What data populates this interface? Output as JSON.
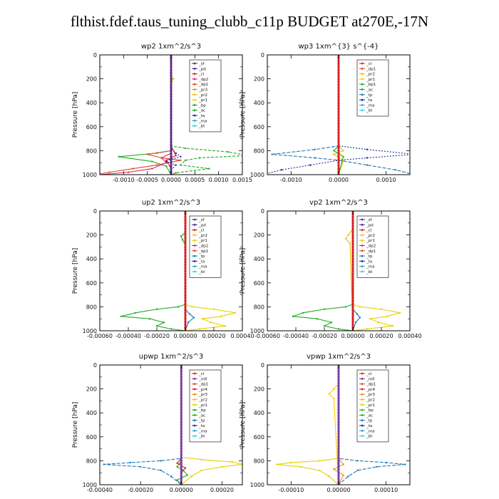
{
  "title": "flthist.fdef.taus_tuning_clubb_c11p  BUDGET at270E,-17N",
  "colors": {
    "sf": "#5b2a86",
    "pd": "#4a2a9a",
    "cl": "#d62020",
    "dp2": "#e0245e",
    "dp1": "#d84a2a",
    "pr3": "#e88a2a",
    "pr2": "#f0c000",
    "pr1": "#e8d000",
    "bp": "#22aa22",
    "ac": "#18b018",
    "tp": "#1e78b4",
    "ta": "#1e2a9a",
    "ma": "#3aa0c8",
    "bt": "#30d0e8",
    "mfl": "#7a3aa0",
    "pr4": "#c02040",
    "prX": "#ffd000"
  },
  "chart_data": [
    {
      "type": "line",
      "panel": "wp2",
      "title": "wp2  1xm^2/s^3",
      "ylabel": "Pressure [hPa]",
      "ylim": [
        1000,
        0
      ],
      "yticks": [
        0,
        200,
        400,
        600,
        800,
        1000
      ],
      "xlim": [
        -0.0015,
        0.0015
      ],
      "xticks": [
        -0.001,
        -0.0005,
        0.0,
        0.0005,
        0.001,
        0.0015
      ],
      "xticklabels": [
        "-0.0010",
        "-0.0005",
        "0.0000",
        "0.0005",
        "0.0010",
        "0.0015"
      ],
      "legend": [
        "_sf",
        "_pd",
        "_cl",
        "_dp2",
        "_dp1",
        "_pr3",
        "_pr2",
        "_pr1",
        "_bp",
        "_ac",
        "_ta",
        "_ma",
        "_bt"
      ],
      "series": [
        {
          "name": "_bp",
          "color": "bp",
          "dash": "4,2",
          "x": [
            0,
            0,
            0.0003,
            0.0012,
            0.0016,
            0.0006,
            0.0003,
            0.0002,
            0.0008,
            0.0001,
            0
          ],
          "y": [
            0,
            760,
            780,
            810,
            840,
            860,
            880,
            920,
            950,
            985,
            1000
          ]
        },
        {
          "name": "_ac",
          "color": "ac",
          "dash": "",
          "x": [
            0,
            0,
            -0.0003,
            -0.0011,
            -0.0004,
            -0.0001,
            0
          ],
          "y": [
            0,
            800,
            820,
            850,
            890,
            930,
            1000
          ]
        },
        {
          "name": "_dp1",
          "color": "dp1",
          "dash": "",
          "x": [
            0,
            0,
            -0.0005,
            -0.0002,
            0.0002,
            -0.0003,
            -0.0008,
            -0.0013,
            -0.0016
          ],
          "y": [
            0,
            800,
            830,
            860,
            880,
            920,
            950,
            980,
            1000
          ]
        },
        {
          "name": "_dp2",
          "color": "dp2",
          "dash": "",
          "x": [
            0,
            0,
            -0.0002,
            -0.0001,
            -0.0004,
            -0.0009,
            -0.0015
          ],
          "y": [
            0,
            820,
            860,
            900,
            950,
            980,
            1000
          ]
        },
        {
          "name": "_cl",
          "color": "cl",
          "dash": "",
          "x": [
            0,
            0,
            0.0001,
            -0.0001,
            0,
            0
          ],
          "y": [
            0,
            760,
            840,
            880,
            950,
            1000
          ]
        },
        {
          "name": "_pr2",
          "color": "pr2",
          "dash": "",
          "x": [
            0,
            0,
            5e-05,
            0,
            0
          ],
          "y": [
            0,
            180,
            200,
            230,
            1000
          ]
        },
        {
          "name": "_ta",
          "color": "ta",
          "dash": "2,2",
          "x": [
            0,
            0,
            0.0001,
            0.0002,
            0,
            -0.0001,
            0.0001,
            0,
            0
          ],
          "y": [
            0,
            780,
            820,
            850,
            870,
            890,
            920,
            960,
            1000
          ]
        },
        {
          "name": "_sf",
          "color": "sf",
          "dash": "",
          "x": [
            0,
            0
          ],
          "y": [
            0,
            1000
          ],
          "width": 2.6
        }
      ]
    },
    {
      "type": "line",
      "panel": "wp3",
      "title": "wp3  1xm^{3} s^{-4}",
      "ylabel": "Pressure [hPa]",
      "ylim": [
        1000,
        0
      ],
      "yticks": [
        0,
        200,
        400,
        600,
        800,
        1000
      ],
      "xlim": [
        -0.0015,
        0.0015
      ],
      "xticks": [
        -0.001,
        0.0,
        0.001
      ],
      "xticklabels": [
        "-0.0010",
        "0.0000",
        "0.0010"
      ],
      "legend": [
        "_cl",
        "_dp1",
        "_pr2",
        "_pr1",
        "_bp1",
        "_ac",
        "_tp",
        "_ta",
        "_ma",
        "_bt"
      ],
      "series": [
        {
          "name": "_tp",
          "color": "tp",
          "dash": "5,2",
          "x": [
            0,
            0,
            -0.0005,
            -0.0014,
            -0.0005,
            0,
            0.0006,
            0.0012,
            0.0016
          ],
          "y": [
            0,
            760,
            790,
            830,
            860,
            880,
            920,
            960,
            1000
          ]
        },
        {
          "name": "_ta",
          "color": "ta",
          "dash": "2,2",
          "x": [
            0,
            0,
            0.0006,
            0.0016,
            0.0006,
            0,
            -0.0006,
            -0.0012,
            -0.0016
          ],
          "y": [
            0,
            760,
            790,
            830,
            860,
            880,
            920,
            960,
            1000
          ]
        },
        {
          "name": "_pr2",
          "color": "pr2",
          "dash": "",
          "x": [
            0,
            0,
            0.0001,
            -0.0001,
            0.0001,
            0
          ],
          "y": [
            0,
            760,
            800,
            830,
            880,
            1000
          ]
        },
        {
          "name": "_bp1",
          "color": "bp",
          "dash": "",
          "x": [
            0,
            0,
            -0.0001,
            0.0001,
            0
          ],
          "y": [
            0,
            760,
            800,
            850,
            1000
          ]
        },
        {
          "name": "_cl",
          "color": "cl",
          "dash": "",
          "x": [
            0,
            0
          ],
          "y": [
            0,
            1000
          ],
          "width": 2.6
        }
      ]
    },
    {
      "type": "line",
      "panel": "up2",
      "title": "up2  1xm^2/s^3",
      "ylabel": "Pressure [hPa]",
      "ylim": [
        1000,
        0
      ],
      "yticks": [
        0,
        200,
        400,
        600,
        800,
        1000
      ],
      "xlim": [
        -0.0006,
        0.0004
      ],
      "xticks": [
        -0.0006,
        -0.0004,
        -0.0002,
        0.0,
        0.0002,
        0.0004
      ],
      "xticklabels": [
        "-0.00060",
        "-0.00040",
        "-0.00020",
        "0.00000",
        "0.00020",
        "0.00040"
      ],
      "legend": [
        "_sf",
        "_pd",
        "_cl",
        "_pr2",
        "_pr1",
        "_dp2",
        "_dp1",
        "_tp",
        "_ta",
        "_ma",
        "_bt"
      ],
      "series": [
        {
          "name": "_bp",
          "color": "bp",
          "dash": "",
          "x": [
            0,
            0,
            -5e-05,
            -0.0002,
            -0.00035,
            -0.00045,
            -0.00025,
            -0.00015,
            -0.0002,
            -0.0001,
            0
          ],
          "y": [
            0,
            780,
            800,
            820,
            850,
            880,
            900,
            930,
            960,
            985,
            1000
          ]
        },
        {
          "name": "_pr1",
          "color": "pr1",
          "dash": "",
          "x": [
            0,
            0,
            5e-05,
            0.0002,
            0.00035,
            0.00025,
            0.00012,
            0.00018,
            0.00028,
            0.0001,
            0
          ],
          "y": [
            0,
            780,
            800,
            820,
            850,
            880,
            900,
            930,
            960,
            985,
            1000
          ]
        },
        {
          "name": "_pr2",
          "color": "ac",
          "dash": "",
          "x": [
            0,
            0,
            -3e-05,
            -2e-05,
            0,
            0
          ],
          "y": [
            0,
            180,
            210,
            240,
            280,
            1000
          ]
        },
        {
          "name": "_tp",
          "color": "tp",
          "dash": "",
          "x": [
            0,
            0,
            3e-05,
            6e-05,
            2e-05,
            0
          ],
          "y": [
            0,
            820,
            860,
            890,
            930,
            1000
          ]
        },
        {
          "name": "_cl",
          "color": "cl",
          "dash": "",
          "x": [
            0,
            0
          ],
          "y": [
            0,
            1000
          ],
          "width": 2.6
        }
      ]
    },
    {
      "type": "line",
      "panel": "vp2",
      "title": "vp2  1xm^2/s^3",
      "ylabel": "Pressure [hPa]",
      "ylim": [
        1000,
        0
      ],
      "yticks": [
        0,
        200,
        400,
        600,
        800,
        1000
      ],
      "xlim": [
        -0.0006,
        0.0004
      ],
      "xticks": [
        -0.0006,
        -0.0004,
        -0.0002,
        0.0,
        0.0002,
        0.0004
      ],
      "xticklabels": [
        "-0.00060",
        "-0.00040",
        "-0.00020",
        "0.00000",
        "0.00020",
        "0.00040"
      ],
      "legend": [
        "_sf",
        "_pd",
        "_cl",
        "_pr2",
        "_pr1",
        "_dp2",
        "_dp1",
        "_tp",
        "_ta",
        "_ma",
        "_bt"
      ],
      "series": [
        {
          "name": "_bp",
          "color": "bp",
          "dash": "",
          "x": [
            0,
            0,
            -5e-05,
            -0.0002,
            -0.00035,
            -0.00042,
            -0.00025,
            -0.00015,
            -0.0002,
            -0.0001,
            0
          ],
          "y": [
            0,
            780,
            800,
            820,
            850,
            880,
            900,
            930,
            960,
            985,
            1000
          ]
        },
        {
          "name": "_pr1",
          "color": "pr1",
          "dash": "",
          "x": [
            0,
            0,
            5e-05,
            0.0002,
            0.00033,
            0.00024,
            0.00012,
            0.00018,
            0.00028,
            0.0001,
            0
          ],
          "y": [
            0,
            780,
            800,
            820,
            850,
            880,
            900,
            930,
            960,
            985,
            1000
          ]
        },
        {
          "name": "_pr2",
          "color": "pr2",
          "dash": "",
          "x": [
            0,
            0,
            -3e-05,
            -5e-05,
            -2e-05,
            0
          ],
          "y": [
            0,
            150,
            200,
            230,
            270,
            1000
          ]
        },
        {
          "name": "_tp",
          "color": "tp",
          "dash": "",
          "x": [
            0,
            0,
            3e-05,
            5e-05,
            2e-05,
            0
          ],
          "y": [
            0,
            820,
            860,
            890,
            930,
            1000
          ]
        },
        {
          "name": "_cl",
          "color": "cl",
          "dash": "",
          "x": [
            0,
            0
          ],
          "y": [
            0,
            1000
          ],
          "width": 2.6
        }
      ]
    },
    {
      "type": "line",
      "panel": "upwp",
      "title": "upwp  1xm^2/s^3",
      "ylabel": "Pressure [hPa]",
      "ylim": [
        1000,
        0
      ],
      "yticks": [
        0,
        200,
        400,
        600,
        800,
        1000
      ],
      "xlim": [
        -0.0004,
        0.0003
      ],
      "xticks": [
        -0.0004,
        -0.0002,
        0.0,
        0.0002
      ],
      "xticklabels": [
        "-0.00040",
        "-0.00020",
        "0.00000",
        "0.00020"
      ],
      "legend": [
        "_cl",
        "_mfl",
        "_dp1",
        "_pr4",
        "_pr3",
        "_pr2",
        "_pr1",
        "_bp",
        "_ac",
        "_tp",
        "_ta",
        "_ma",
        "_bt"
      ],
      "series": [
        {
          "name": "_tp",
          "color": "tp",
          "dash": "5,2",
          "x": [
            0,
            0,
            -0.0001,
            -0.00025,
            -0.00038,
            -0.0002,
            -0.0001,
            -5e-05,
            0
          ],
          "y": [
            0,
            780,
            800,
            815,
            830,
            850,
            880,
            930,
            1000
          ]
        },
        {
          "name": "_pr1",
          "color": "pr1",
          "dash": "",
          "x": [
            0,
            0,
            0.0001,
            0.00025,
            0.0003,
            0.0002,
            0.0001,
            5e-05,
            0
          ],
          "y": [
            0,
            770,
            790,
            810,
            830,
            850,
            880,
            930,
            1000
          ]
        },
        {
          "name": "_pr2",
          "color": "ac",
          "dash": "",
          "x": [
            0,
            0,
            -2e-05,
            1e-05,
            3e-05,
            -2e-05,
            0
          ],
          "y": [
            0,
            800,
            850,
            880,
            920,
            960,
            1000
          ]
        },
        {
          "name": "_cl",
          "color": "cl",
          "dash": "",
          "x": [
            0,
            0,
            -2e-05,
            2e-05,
            0,
            0
          ],
          "y": [
            0,
            780,
            820,
            860,
            900,
            1000
          ]
        },
        {
          "name": "_mfl",
          "color": "mfl",
          "dash": "",
          "x": [
            0,
            0
          ],
          "y": [
            0,
            1000
          ],
          "width": 2.6
        }
      ]
    },
    {
      "type": "line",
      "panel": "vpwp",
      "title": "vpwp  1xm^2/s^3",
      "ylabel": "Pressure [hPa]",
      "ylim": [
        1000,
        0
      ],
      "yticks": [
        0,
        200,
        400,
        600,
        800,
        1000
      ],
      "xlim": [
        -0.00015,
        0.00015
      ],
      "xticks": [
        -0.0001,
        0.0,
        0.0001
      ],
      "xticklabels": [
        "-0.00010",
        "0.00000",
        "0.00010"
      ],
      "legend": [
        "_cl",
        "_mfl",
        "_dp1",
        "_pr4",
        "_pr3",
        "_pr2",
        "_pr1",
        "_bp",
        "_ac",
        "_tp",
        "_ta",
        "_ma",
        "_bt"
      ],
      "series": [
        {
          "name": "_tp",
          "color": "tp",
          "dash": "5,2",
          "x": [
            0,
            0,
            4e-05,
            0.0001,
            0.00014,
            8e-05,
            4e-05,
            2e-05,
            0
          ],
          "y": [
            0,
            780,
            800,
            815,
            830,
            850,
            880,
            930,
            1000
          ]
        },
        {
          "name": "_pr1",
          "color": "pr1",
          "dash": "",
          "x": [
            0,
            0,
            -4e-05,
            -0.0001,
            -0.00013,
            -8e-05,
            -4e-05,
            -2e-05,
            0
          ],
          "y": [
            0,
            780,
            800,
            815,
            830,
            850,
            880,
            930,
            1000
          ]
        },
        {
          "name": "_pr2",
          "color": "prX",
          "dash": "",
          "x": [
            0,
            0,
            -1e-05,
            -2e-05,
            -1e-05,
            0
          ],
          "y": [
            0,
            160,
            200,
            240,
            280,
            1000
          ]
        },
        {
          "name": "_pr3",
          "color": "pr3",
          "dash": "",
          "x": [
            0,
            0,
            1e-05,
            -1e-05,
            1e-05,
            0
          ],
          "y": [
            0,
            780,
            830,
            870,
            920,
            1000
          ]
        },
        {
          "name": "_mfl",
          "color": "mfl",
          "dash": "",
          "x": [
            0,
            0
          ],
          "y": [
            0,
            1000
          ],
          "width": 2.6
        }
      ]
    }
  ]
}
